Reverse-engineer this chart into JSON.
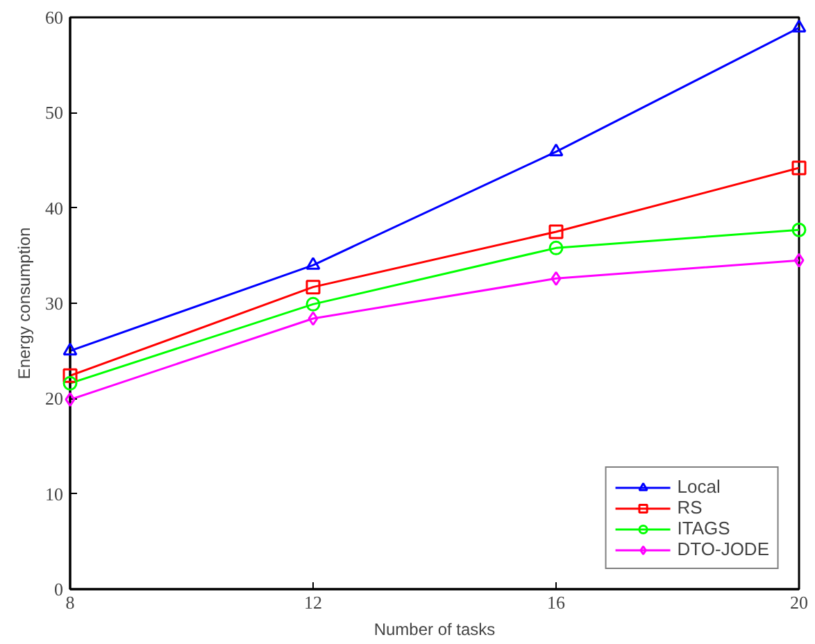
{
  "chart_data": {
    "type": "line",
    "xlabel": "Number of tasks",
    "ylabel": "Energy consumption",
    "x": [
      8,
      12,
      16,
      20
    ],
    "series": [
      {
        "name": "Local",
        "color": "#0000ff",
        "marker": "triangle",
        "values": [
          25.0,
          34.0,
          45.9,
          58.9
        ]
      },
      {
        "name": "RS",
        "color": "#ff0000",
        "marker": "square",
        "values": [
          22.4,
          31.7,
          37.5,
          44.2
        ]
      },
      {
        "name": "ITAGS",
        "color": "#00ff00",
        "marker": "circle",
        "values": [
          21.6,
          29.9,
          35.8,
          37.7
        ]
      },
      {
        "name": "DTO-JODE",
        "color": "#ff00ff",
        "marker": "diamond",
        "values": [
          19.9,
          28.4,
          32.6,
          34.5
        ]
      }
    ],
    "xlim": [
      8,
      20
    ],
    "xticks": [
      8,
      12,
      16,
      20
    ],
    "ylim": [
      0,
      60
    ],
    "yticks": [
      0,
      10,
      20,
      30,
      40,
      50,
      60
    ],
    "grid": false,
    "legend": "bottom right"
  }
}
